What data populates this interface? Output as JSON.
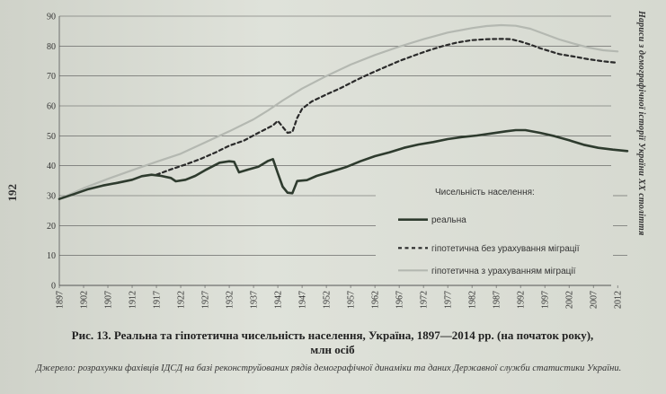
{
  "page_number": "192",
  "running_head": "Нариси з демографічної історії України XX століття",
  "caption_line1": "Рис. 13. Реальна та гіпотетична чисельність населення, Україна, 1897—2014 рр. (на початок року),",
  "caption_line2": "млн осіб",
  "source_text": "Джерело: розрахунки фахівців ІДСД на базі реконструйованих рядів демографічної динаміки та даних Державної служби статистики України.",
  "colors": {
    "real": "#2e3b2e",
    "no_migration": "#2a2a2a",
    "with_migration": "#b4b8b1",
    "grid": "#555555"
  },
  "chart_data": {
    "type": "line",
    "title": "",
    "xlabel": "",
    "ylabel": "",
    "ylim": [
      0,
      90
    ],
    "xlim": [
      1897,
      2014
    ],
    "y_ticks": [
      0,
      10,
      20,
      30,
      40,
      50,
      60,
      70,
      80,
      90
    ],
    "x_ticks": [
      "1897",
      "1902",
      "1907",
      "1912",
      "1917",
      "1922",
      "1927",
      "1932",
      "1937",
      "1942",
      "1947",
      "1952",
      "1957",
      "1962",
      "1967",
      "1972",
      "1977",
      "1982",
      "1987",
      "1992",
      "1997",
      "2002",
      "2007",
      "2012"
    ],
    "legend_title": "Чисельність населення:",
    "legend_position": "bottom-right",
    "series": [
      {
        "name": "реальна",
        "style": "solid",
        "x": [
          1897,
          1900,
          1903,
          1906,
          1909,
          1912,
          1914,
          1916,
          1918,
          1920,
          1921,
          1923,
          1925,
          1927,
          1930,
          1932,
          1933,
          1934,
          1936,
          1938,
          1940,
          1941,
          1942,
          1943,
          1944,
          1945,
          1946,
          1948,
          1950,
          1953,
          1956,
          1959,
          1962,
          1965,
          1968,
          1971,
          1974,
          1977,
          1980,
          1983,
          1986,
          1989,
          1991,
          1993,
          1996,
          1999,
          2002,
          2005,
          2008,
          2011,
          2014
        ],
        "values": [
          28.9,
          30.5,
          32.2,
          33.4,
          34.3,
          35.3,
          36.5,
          37.0,
          36.6,
          35.9,
          34.8,
          35.3,
          36.6,
          38.5,
          41.0,
          41.5,
          41.3,
          37.8,
          38.8,
          39.7,
          41.6,
          42.2,
          37.5,
          33.0,
          31.0,
          30.8,
          34.9,
          35.2,
          36.6,
          38.0,
          39.5,
          41.5,
          43.2,
          44.5,
          46.0,
          47.1,
          47.9,
          48.9,
          49.6,
          50.1,
          50.8,
          51.5,
          51.9,
          51.9,
          51.0,
          49.9,
          48.5,
          47.0,
          46.0,
          45.4,
          44.9
        ]
      },
      {
        "name": "гіпотетична без урахування міграції",
        "style": "dashed",
        "x": [
          1917,
          1920,
          1923,
          1926,
          1929,
          1932,
          1935,
          1938,
          1941,
          1942,
          1943,
          1944,
          1945,
          1946,
          1947,
          1949,
          1952,
          1955,
          1958,
          1961,
          1964,
          1967,
          1970,
          1973,
          1976,
          1979,
          1982,
          1985,
          1988,
          1990,
          1992,
          1994,
          1996,
          1998,
          2000,
          2003,
          2006,
          2009,
          2012
        ],
        "values": [
          37.0,
          38.8,
          40.4,
          42.2,
          44.3,
          46.7,
          48.4,
          51.0,
          53.5,
          55.0,
          53.0,
          51.0,
          51.3,
          56.0,
          59.0,
          61.5,
          63.8,
          66.0,
          68.5,
          70.8,
          72.9,
          75.0,
          76.8,
          78.5,
          80.0,
          81.2,
          82.0,
          82.3,
          82.4,
          82.3,
          81.5,
          80.5,
          79.3,
          78.3,
          77.3,
          76.5,
          75.6,
          74.9,
          74.4
        ]
      },
      {
        "name": "гіпотетична з урахуванням міграції",
        "style": "solid-light",
        "x": [
          1897,
          1902,
          1907,
          1912,
          1917,
          1922,
          1927,
          1932,
          1937,
          1940,
          1943,
          1947,
          1952,
          1957,
          1962,
          1967,
          1972,
          1977,
          1982,
          1985,
          1988,
          1991,
          1994,
          1997,
          2000,
          2003,
          2006,
          2009,
          2012
        ],
        "values": [
          28.9,
          32.5,
          35.6,
          38.5,
          41.3,
          44.0,
          47.8,
          51.5,
          55.5,
          58.5,
          61.8,
          65.8,
          70.0,
          73.8,
          77.0,
          79.8,
          82.3,
          84.5,
          86.0,
          86.7,
          87.0,
          86.8,
          85.8,
          84.0,
          82.2,
          80.8,
          79.5,
          78.6,
          78.2
        ]
      }
    ]
  }
}
